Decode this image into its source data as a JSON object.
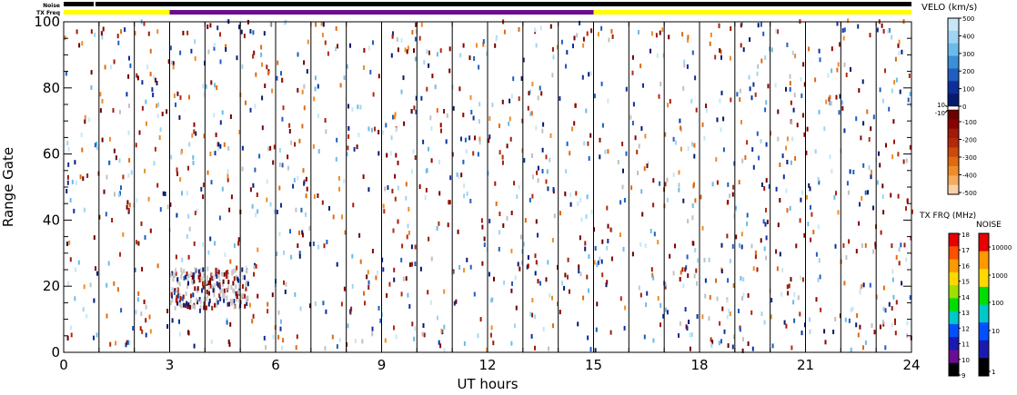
{
  "chart_data": {
    "type": "heatmap",
    "xlabel": "UT hours",
    "ylabel": "Range Gate",
    "xlim": [
      0,
      24
    ],
    "ylim": [
      0,
      100
    ],
    "x_ticks": [
      "0",
      "3",
      "6",
      "9",
      "12",
      "15",
      "18",
      "21",
      "24"
    ],
    "y_ticks": [
      "0",
      "20",
      "40",
      "60",
      "80",
      "100"
    ],
    "hour_lines": [
      1,
      2,
      3,
      4,
      5,
      6,
      7,
      8,
      9,
      10,
      11,
      12,
      13,
      14,
      15,
      16,
      17,
      18,
      19,
      20,
      21,
      22,
      23
    ],
    "status_bars": [
      {
        "label": "Noise",
        "segments": [
          {
            "x0": 0,
            "x1": 0.85,
            "color": "#000000"
          },
          {
            "x0": 0.9,
            "x1": 24,
            "color": "#000000"
          }
        ]
      },
      {
        "label": "TX Freq",
        "segments": [
          {
            "x0": 0,
            "x1": 3,
            "color": "#ffff00"
          },
          {
            "x0": 3,
            "x1": 15,
            "color": "#6a0d91"
          },
          {
            "x0": 15,
            "x1": 24,
            "color": "#ffff00"
          }
        ]
      }
    ],
    "velocity_scale": {
      "title": "VELO (km/s)",
      "positive_ticks": [
        "500",
        "400",
        "300",
        "200",
        "100",
        "0"
      ],
      "negative_ticks": [
        "-100",
        "-200",
        "-300",
        "-400",
        "-500"
      ],
      "gap_labels": [
        "10",
        "-10"
      ],
      "positive_colors": [
        "#c6e7f7",
        "#9fd4f2",
        "#6bbbe8",
        "#3a8fd6",
        "#1f5ec0",
        "#0d2f9c",
        "#061a6e"
      ],
      "negative_colors": [
        "#6b0000",
        "#8b0000",
        "#a11a0a",
        "#b5280a",
        "#cc4a0a",
        "#e06a10",
        "#ee8c2a",
        "#f5ac5c",
        "#fad0a8"
      ]
    },
    "txfreq_scale": {
      "title": "TX FRQ (MHz)",
      "ticks": [
        "18",
        "17",
        "16",
        "15",
        "14",
        "13",
        "12",
        "11",
        "10",
        "9"
      ],
      "colors": [
        "#e60000",
        "#ff5000",
        "#ff9900",
        "#ffd800",
        "#a0e000",
        "#00dd00",
        "#00c8c8",
        "#0050ff",
        "#1a1ab0",
        "#6a0d91",
        "#000000"
      ]
    },
    "noise_scale": {
      "title": "NOISE",
      "ticks": [
        "10000",
        "1000",
        "100",
        "10",
        "1"
      ],
      "colors": [
        "#e60000",
        "#ff9900",
        "#ffd800",
        "#00dd00",
        "#00c8c8",
        "#0050ff",
        "#1a1ab0",
        "#000000"
      ]
    },
    "data_colors": [
      "#8b0000",
      "#a11a0a",
      "#6b0000",
      "#0d2f9c",
      "#061a6e",
      "#1f5ec0",
      "#6bbbe8",
      "#9fd4f2",
      "#c6e7f7",
      "#e06a10",
      "#ee8c2a",
      "#b5280a",
      "#c0c0c0"
    ],
    "random_seed": 20240517,
    "scatter_count": 1500,
    "ground_scatter_cluster": {
      "x_range": [
        3.0,
        5.2
      ],
      "gate_range": [
        14,
        26
      ],
      "color": "#c8c8c8",
      "echo_colors": [
        "#8b0000",
        "#6b0000",
        "#a11a0a",
        "#061a6e",
        "#0d2f9c"
      ]
    }
  }
}
